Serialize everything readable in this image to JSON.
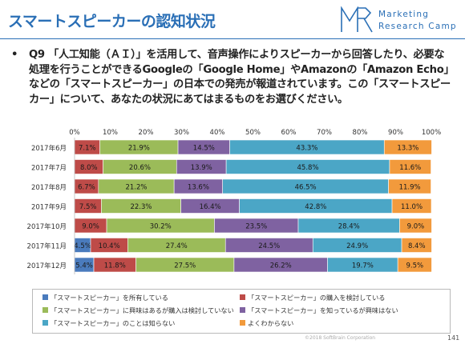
{
  "header": {
    "title": "スマートスピーカーの認知状況",
    "logo_line1": "Marketing",
    "logo_line2": "Research Camp"
  },
  "question": {
    "bullet": "•",
    "text": "Q9 「人工知能（ＡＩ）」を活用して、音声操作によりスピーカーから回答したり、必要な処理を行うことができるGoogleの「Google Home」やAmazonの「Amazon Echo」などの「スマートスピーカー」の日本での発売が報道されています。この「スマートスピーカー」について、あなたの状況にあてはまるものをお選びください。"
  },
  "footer": {
    "copyright": "©2018 SoftBrain Corporation",
    "page_number": "141"
  },
  "chart_data": {
    "type": "bar",
    "orientation": "horizontal",
    "stacked": true,
    "categories": [
      "2017年6月",
      "2017年7月",
      "2017年8月",
      "2017年9月",
      "2017年10月",
      "2017年11月",
      "2017年12月"
    ],
    "xlim": [
      0,
      100
    ],
    "x_ticks": [
      "0%",
      "10%",
      "20%",
      "30%",
      "40%",
      "50%",
      "60%",
      "70%",
      "80%",
      "90%",
      "100%"
    ],
    "grid": false,
    "legend_position": "bottom",
    "series": [
      {
        "name": "「スマートスピーカー」を所有している",
        "color": "#4a7bbd",
        "values": [
          0,
          0,
          0,
          0,
          0,
          4.5,
          5.4
        ],
        "labels": [
          "",
          "",
          "",
          "",
          "",
          "4.5%",
          "5.4%"
        ]
      },
      {
        "name": "「スマートスピーカー」の購入を検討している",
        "color": "#be4b48",
        "values": [
          7.1,
          8.0,
          6.7,
          7.5,
          9.0,
          10.4,
          11.8
        ],
        "labels": [
          "7.1%",
          "8.0%",
          "6.7%",
          "7.5%",
          "9.0%",
          "10.4%",
          "11.8%"
        ]
      },
      {
        "name": "「スマートスピーカー」に興味はあるが購入は検討していない",
        "color": "#9bbb59",
        "values": [
          21.9,
          20.6,
          21.2,
          22.3,
          30.2,
          27.4,
          27.5
        ],
        "labels": [
          "21.9%",
          "20.6%",
          "21.2%",
          "22.3%",
          "30.2%",
          "27.4%",
          "27.5%"
        ]
      },
      {
        "name": "「スマートスピーカー」を知っているが興味はない",
        "color": "#7f62a1",
        "values": [
          14.5,
          13.9,
          13.6,
          16.4,
          23.5,
          24.5,
          26.2
        ],
        "labels": [
          "14.5%",
          "13.9%",
          "13.6%",
          "16.4%",
          "23.5%",
          "24.5%",
          "26.2%"
        ]
      },
      {
        "name": "「スマートスピーカー」のことは知らない",
        "color": "#4ba6c6",
        "values": [
          43.3,
          45.8,
          46.5,
          42.8,
          28.4,
          24.9,
          19.7
        ],
        "labels": [
          "43.3%",
          "45.8%",
          "46.5%",
          "42.8%",
          "28.4%",
          "24.9%",
          "19.7%"
        ]
      },
      {
        "name": "よくわからない",
        "color": "#f29a3c",
        "values": [
          13.3,
          11.6,
          11.9,
          11.0,
          9.0,
          8.4,
          9.5
        ],
        "labels": [
          "13.3%",
          "11.6%",
          "11.9%",
          "11.0%",
          "9.0%",
          "8.4%",
          "9.5%"
        ]
      }
    ]
  }
}
